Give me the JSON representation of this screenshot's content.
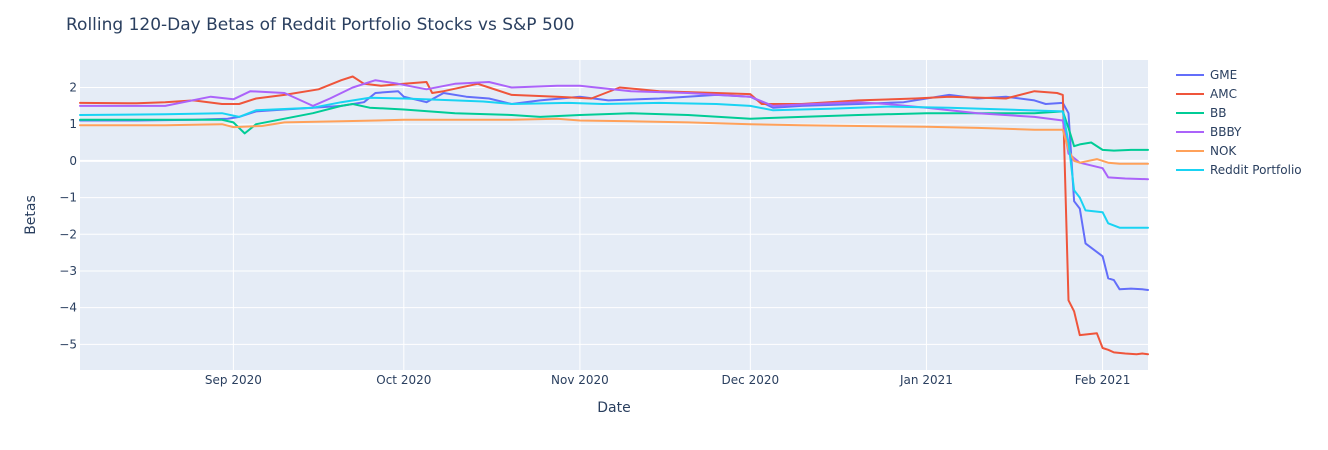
{
  "chart_data": {
    "type": "line",
    "title": "Rolling 120-Day Betas of Reddit Portfolio Stocks vs S&P 500",
    "xlabel": "Date",
    "ylabel": "Betas",
    "xlim": [
      "2020-08-05",
      "2021-02-09"
    ],
    "ylim": [
      -5.7,
      2.75
    ],
    "x_ticks": [
      {
        "date": "2020-09-01",
        "label": "Sep 2020"
      },
      {
        "date": "2020-10-01",
        "label": "Oct 2020"
      },
      {
        "date": "2020-11-01",
        "label": "Nov 2020"
      },
      {
        "date": "2020-12-01",
        "label": "Dec 2020"
      },
      {
        "date": "2021-01-01",
        "label": "Jan 2021"
      },
      {
        "date": "2021-02-01",
        "label": "Feb 2021"
      }
    ],
    "y_ticks": [
      {
        "value": 2,
        "label": "2"
      },
      {
        "value": 1,
        "label": "1"
      },
      {
        "value": 0,
        "label": "0"
      },
      {
        "value": -1,
        "label": "−1"
      },
      {
        "value": -2,
        "label": "−2"
      },
      {
        "value": -3,
        "label": "−3"
      },
      {
        "value": -4,
        "label": "−4"
      },
      {
        "value": -5,
        "label": "−5"
      }
    ],
    "grid": true,
    "legend_position": "right",
    "series": [
      {
        "name": "GME",
        "color": "#636efa",
        "points": [
          [
            "2020-08-05",
            1.1
          ],
          [
            "2020-08-15",
            1.1
          ],
          [
            "2020-08-25",
            1.12
          ],
          [
            "2020-08-31",
            1.15
          ],
          [
            "2020-09-02",
            1.2
          ],
          [
            "2020-09-05",
            1.35
          ],
          [
            "2020-09-10",
            1.4
          ],
          [
            "2020-09-15",
            1.45
          ],
          [
            "2020-09-20",
            1.5
          ],
          [
            "2020-09-24",
            1.6
          ],
          [
            "2020-09-26",
            1.85
          ],
          [
            "2020-09-30",
            1.9
          ],
          [
            "2020-10-01",
            1.75
          ],
          [
            "2020-10-05",
            1.6
          ],
          [
            "2020-10-08",
            1.85
          ],
          [
            "2020-10-12",
            1.75
          ],
          [
            "2020-10-16",
            1.7
          ],
          [
            "2020-10-20",
            1.55
          ],
          [
            "2020-10-25",
            1.65
          ],
          [
            "2020-11-01",
            1.75
          ],
          [
            "2020-11-06",
            1.65
          ],
          [
            "2020-11-15",
            1.7
          ],
          [
            "2020-11-25",
            1.8
          ],
          [
            "2020-12-01",
            1.75
          ],
          [
            "2020-12-05",
            1.45
          ],
          [
            "2020-12-10",
            1.5
          ],
          [
            "2020-12-20",
            1.55
          ],
          [
            "2020-12-28",
            1.6
          ],
          [
            "2021-01-05",
            1.8
          ],
          [
            "2021-01-10",
            1.7
          ],
          [
            "2021-01-15",
            1.75
          ],
          [
            "2021-01-20",
            1.65
          ],
          [
            "2021-01-22",
            1.55
          ],
          [
            "2021-01-25",
            1.58
          ],
          [
            "2021-01-26",
            1.3
          ],
          [
            "2021-01-27",
            -1.1
          ],
          [
            "2021-01-28",
            -1.3
          ],
          [
            "2021-01-29",
            -2.25
          ],
          [
            "2021-02-01",
            -2.6
          ],
          [
            "2021-02-02",
            -3.2
          ],
          [
            "2021-02-03",
            -3.25
          ],
          [
            "2021-02-04",
            -3.5
          ],
          [
            "2021-02-06",
            -3.48
          ],
          [
            "2021-02-08",
            -3.5
          ],
          [
            "2021-02-09",
            -3.52
          ]
        ]
      },
      {
        "name": "AMC",
        "color": "#ef553b",
        "points": [
          [
            "2020-08-05",
            1.58
          ],
          [
            "2020-08-15",
            1.57
          ],
          [
            "2020-08-20",
            1.6
          ],
          [
            "2020-08-25",
            1.65
          ],
          [
            "2020-08-30",
            1.55
          ],
          [
            "2020-09-02",
            1.55
          ],
          [
            "2020-09-05",
            1.7
          ],
          [
            "2020-09-10",
            1.8
          ],
          [
            "2020-09-16",
            1.95
          ],
          [
            "2020-09-20",
            2.2
          ],
          [
            "2020-09-22",
            2.3
          ],
          [
            "2020-09-24",
            2.1
          ],
          [
            "2020-09-27",
            2.05
          ],
          [
            "2020-10-01",
            2.1
          ],
          [
            "2020-10-05",
            2.15
          ],
          [
            "2020-10-06",
            1.85
          ],
          [
            "2020-10-08",
            1.9
          ],
          [
            "2020-10-14",
            2.1
          ],
          [
            "2020-10-16",
            2.0
          ],
          [
            "2020-10-20",
            1.8
          ],
          [
            "2020-10-28",
            1.75
          ],
          [
            "2020-11-03",
            1.7
          ],
          [
            "2020-11-08",
            2.0
          ],
          [
            "2020-11-15",
            1.9
          ],
          [
            "2020-11-25",
            1.85
          ],
          [
            "2020-12-01",
            1.82
          ],
          [
            "2020-12-03",
            1.55
          ],
          [
            "2020-12-10",
            1.55
          ],
          [
            "2020-12-20",
            1.65
          ],
          [
            "2020-12-30",
            1.7
          ],
          [
            "2021-01-05",
            1.75
          ],
          [
            "2021-01-15",
            1.7
          ],
          [
            "2021-01-20",
            1.9
          ],
          [
            "2021-01-24",
            1.85
          ],
          [
            "2021-01-25",
            1.8
          ],
          [
            "2021-01-26",
            -3.8
          ],
          [
            "2021-01-27",
            -4.1
          ],
          [
            "2021-01-28",
            -4.75
          ],
          [
            "2021-01-31",
            -4.7
          ],
          [
            "2021-02-01",
            -5.1
          ],
          [
            "2021-02-02",
            -5.15
          ],
          [
            "2021-02-03",
            -5.22
          ],
          [
            "2021-02-05",
            -5.25
          ],
          [
            "2021-02-07",
            -5.27
          ],
          [
            "2021-02-08",
            -5.25
          ],
          [
            "2021-02-09",
            -5.27
          ]
        ]
      },
      {
        "name": "BB",
        "color": "#00cc96",
        "points": [
          [
            "2020-08-05",
            1.12
          ],
          [
            "2020-08-20",
            1.12
          ],
          [
            "2020-08-30",
            1.12
          ],
          [
            "2020-09-01",
            1.05
          ],
          [
            "2020-09-03",
            0.75
          ],
          [
            "2020-09-05",
            1.0
          ],
          [
            "2020-09-10",
            1.15
          ],
          [
            "2020-09-15",
            1.3
          ],
          [
            "2020-09-20",
            1.5
          ],
          [
            "2020-09-22",
            1.55
          ],
          [
            "2020-09-25",
            1.45
          ],
          [
            "2020-10-01",
            1.4
          ],
          [
            "2020-10-10",
            1.3
          ],
          [
            "2020-10-20",
            1.25
          ],
          [
            "2020-10-25",
            1.2
          ],
          [
            "2020-11-01",
            1.25
          ],
          [
            "2020-11-10",
            1.3
          ],
          [
            "2020-11-20",
            1.25
          ],
          [
            "2020-12-01",
            1.15
          ],
          [
            "2020-12-10",
            1.2
          ],
          [
            "2020-12-20",
            1.25
          ],
          [
            "2021-01-01",
            1.3
          ],
          [
            "2021-01-10",
            1.3
          ],
          [
            "2021-01-20",
            1.3
          ],
          [
            "2021-01-25",
            1.35
          ],
          [
            "2021-01-26",
            0.9
          ],
          [
            "2021-01-27",
            0.4
          ],
          [
            "2021-01-28",
            0.45
          ],
          [
            "2021-01-30",
            0.5
          ],
          [
            "2021-02-01",
            0.3
          ],
          [
            "2021-02-03",
            0.28
          ],
          [
            "2021-02-06",
            0.3
          ],
          [
            "2021-02-09",
            0.3
          ]
        ]
      },
      {
        "name": "BBBY",
        "color": "#ab63fa",
        "points": [
          [
            "2020-08-05",
            1.5
          ],
          [
            "2020-08-20",
            1.5
          ],
          [
            "2020-08-28",
            1.75
          ],
          [
            "2020-09-01",
            1.68
          ],
          [
            "2020-09-04",
            1.9
          ],
          [
            "2020-09-10",
            1.85
          ],
          [
            "2020-09-15",
            1.5
          ],
          [
            "2020-09-18",
            1.7
          ],
          [
            "2020-09-22",
            2.0
          ],
          [
            "2020-09-26",
            2.2
          ],
          [
            "2020-09-30",
            2.1
          ],
          [
            "2020-10-05",
            1.95
          ],
          [
            "2020-10-10",
            2.1
          ],
          [
            "2020-10-16",
            2.15
          ],
          [
            "2020-10-20",
            2.0
          ],
          [
            "2020-10-28",
            2.05
          ],
          [
            "2020-11-01",
            2.05
          ],
          [
            "2020-11-10",
            1.9
          ],
          [
            "2020-11-20",
            1.85
          ],
          [
            "2020-12-01",
            1.75
          ],
          [
            "2020-12-05",
            1.5
          ],
          [
            "2020-12-12",
            1.55
          ],
          [
            "2020-12-20",
            1.6
          ],
          [
            "2020-12-25",
            1.55
          ],
          [
            "2021-01-01",
            1.45
          ],
          [
            "2021-01-10",
            1.3
          ],
          [
            "2021-01-20",
            1.2
          ],
          [
            "2021-01-25",
            1.1
          ],
          [
            "2021-01-26",
            0.2
          ],
          [
            "2021-01-28",
            -0.05
          ],
          [
            "2021-02-01",
            -0.2
          ],
          [
            "2021-02-02",
            -0.45
          ],
          [
            "2021-02-05",
            -0.48
          ],
          [
            "2021-02-09",
            -0.5
          ]
        ]
      },
      {
        "name": "NOK",
        "color": "#ffa15a",
        "points": [
          [
            "2020-08-05",
            0.97
          ],
          [
            "2020-08-20",
            0.97
          ],
          [
            "2020-08-30",
            1.0
          ],
          [
            "2020-09-01",
            0.92
          ],
          [
            "2020-09-06",
            0.95
          ],
          [
            "2020-09-10",
            1.05
          ],
          [
            "2020-09-20",
            1.08
          ],
          [
            "2020-10-01",
            1.12
          ],
          [
            "2020-10-10",
            1.12
          ],
          [
            "2020-10-20",
            1.12
          ],
          [
            "2020-10-28",
            1.15
          ],
          [
            "2020-11-01",
            1.1
          ],
          [
            "2020-11-10",
            1.08
          ],
          [
            "2020-11-20",
            1.05
          ],
          [
            "2020-12-01",
            1.0
          ],
          [
            "2020-12-10",
            0.97
          ],
          [
            "2020-12-20",
            0.95
          ],
          [
            "2021-01-01",
            0.93
          ],
          [
            "2021-01-10",
            0.9
          ],
          [
            "2021-01-20",
            0.85
          ],
          [
            "2021-01-25",
            0.85
          ],
          [
            "2021-01-26",
            0.3
          ],
          [
            "2021-01-27",
            0.0
          ],
          [
            "2021-01-28",
            -0.05
          ],
          [
            "2021-01-31",
            0.05
          ],
          [
            "2021-02-02",
            -0.05
          ],
          [
            "2021-02-04",
            -0.08
          ],
          [
            "2021-02-09",
            -0.08
          ]
        ]
      },
      {
        "name": "Reddit Portfolio",
        "color": "#19d3f3",
        "points": [
          [
            "2020-08-05",
            1.25
          ],
          [
            "2020-08-20",
            1.27
          ],
          [
            "2020-08-30",
            1.3
          ],
          [
            "2020-09-02",
            1.2
          ],
          [
            "2020-09-05",
            1.38
          ],
          [
            "2020-09-15",
            1.45
          ],
          [
            "2020-09-20",
            1.6
          ],
          [
            "2020-09-25",
            1.72
          ],
          [
            "2020-10-01",
            1.7
          ],
          [
            "2020-10-10",
            1.65
          ],
          [
            "2020-10-15",
            1.62
          ],
          [
            "2020-10-20",
            1.55
          ],
          [
            "2020-10-30",
            1.58
          ],
          [
            "2020-11-05",
            1.55
          ],
          [
            "2020-11-15",
            1.58
          ],
          [
            "2020-11-25",
            1.55
          ],
          [
            "2020-12-01",
            1.5
          ],
          [
            "2020-12-05",
            1.38
          ],
          [
            "2020-12-15",
            1.42
          ],
          [
            "2020-12-25",
            1.48
          ],
          [
            "2021-01-05",
            1.45
          ],
          [
            "2021-01-15",
            1.4
          ],
          [
            "2021-01-25",
            1.35
          ],
          [
            "2021-01-26",
            0.5
          ],
          [
            "2021-01-27",
            -0.8
          ],
          [
            "2021-01-28",
            -1.0
          ],
          [
            "2021-01-29",
            -1.35
          ],
          [
            "2021-02-01",
            -1.4
          ],
          [
            "2021-02-02",
            -1.7
          ],
          [
            "2021-02-04",
            -1.82
          ],
          [
            "2021-02-09",
            -1.82
          ]
        ]
      }
    ]
  }
}
